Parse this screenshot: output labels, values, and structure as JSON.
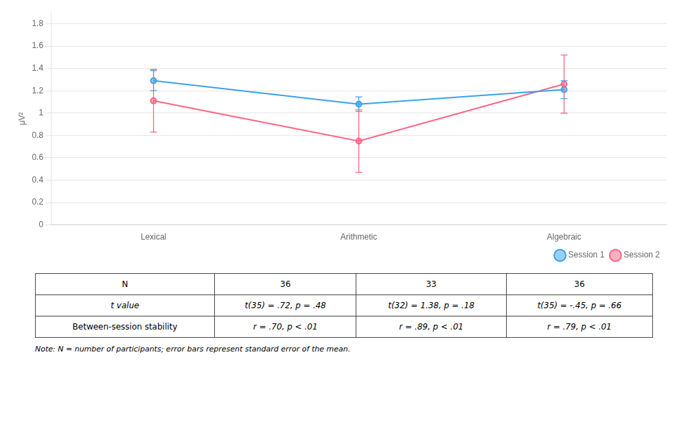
{
  "chart_data": [
    {
      "type": "line",
      "categories": [
        "Lexical",
        "Arithmetic",
        "Algebraic"
      ],
      "series": [
        {
          "name": "Session 1",
          "values": [
            1.29,
            1.08,
            1.21
          ],
          "errors": [
            0.09,
            0.065,
            0.08
          ],
          "marker": "circle"
        },
        {
          "name": "Session 2",
          "values": [
            1.11,
            0.75,
            1.26
          ],
          "errors": [
            0.28,
            0.28,
            0.26
          ],
          "marker": "circle"
        }
      ],
      "ylabel": "μV²",
      "ylim": [
        0,
        1.9
      ],
      "yticks": [
        0,
        0.2,
        0.4,
        0.6,
        0.8,
        1,
        1.2,
        1.4,
        1.6,
        1.8
      ],
      "grid": true,
      "legend": "lower right"
    },
    {
      "type": "table",
      "rows": [
        [
          "N",
          "36",
          "33",
          "36"
        ],
        [
          "t value",
          "t(35) = .72, p = .48",
          "t(32) = 1.38, p = .18",
          "t(35) = -.45, p = .66"
        ],
        [
          "Between-session stability",
          "r = .70, p < .01",
          "r = .89, p < .01",
          "r = .79, p < .01"
        ]
      ],
      "annotations": [
        "Note: N = number of participants; error bars represent standard error of the mean."
      ]
    }
  ]
}
